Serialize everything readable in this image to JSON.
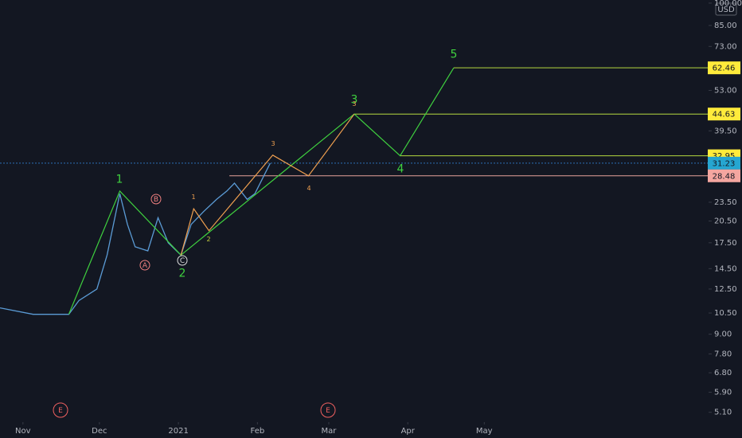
{
  "chart_data": {
    "type": "line",
    "log_scale": true,
    "currency": "USD",
    "ylim": [
      4.75,
      102.3
    ],
    "yticks": [
      {
        "value": 100,
        "label": "100.00"
      },
      {
        "value": 85,
        "label": "85.00"
      },
      {
        "value": 73,
        "label": "73.00"
      },
      {
        "value": 53,
        "label": "53.00"
      },
      {
        "value": 39.5,
        "label": "39.50"
      },
      {
        "value": 23.5,
        "label": "23.50"
      },
      {
        "value": 20.5,
        "label": "20.50"
      },
      {
        "value": 17.5,
        "label": "17.50"
      },
      {
        "value": 14.5,
        "label": "14.50"
      },
      {
        "value": 12.5,
        "label": "12.50"
      },
      {
        "value": 10.5,
        "label": "10.50"
      },
      {
        "value": 9,
        "label": "9.00"
      },
      {
        "value": 7.8,
        "label": "7.80"
      },
      {
        "value": 6.8,
        "label": "6.80"
      },
      {
        "value": 5.9,
        "label": "5.90"
      },
      {
        "value": 5.1,
        "label": "5.10"
      }
    ],
    "xlim": [
      -9,
      269
    ],
    "xticks": [
      {
        "value": 0,
        "label": "Nov"
      },
      {
        "value": 30,
        "label": "Dec"
      },
      {
        "value": 61,
        "label": "2021"
      },
      {
        "value": 92,
        "label": "Feb"
      },
      {
        "value": 120,
        "label": "Mar"
      },
      {
        "value": 151,
        "label": "Apr"
      },
      {
        "value": 181,
        "label": "May"
      }
    ],
    "price": {
      "color": "#5b9bd5",
      "x": [
        -9,
        4,
        18,
        22,
        29,
        33,
        38,
        41,
        44,
        49,
        53,
        57,
        62,
        66,
        71,
        76,
        80,
        83,
        88,
        91,
        97
      ],
      "values": [
        10.9,
        10.4,
        10.4,
        11.5,
        12.5,
        16,
        25,
        20,
        17,
        16.5,
        21,
        17.5,
        16,
        20,
        22,
        24,
        25.5,
        27,
        24,
        25,
        31.23
      ]
    },
    "waves": [
      {
        "color": "#3fd13f",
        "x": [
          18,
          38,
          62,
          130,
          148,
          169
        ],
        "values": [
          10.4,
          25.5,
          16,
          44.63,
          32.95,
          62.46
        ]
      },
      {
        "color": "#f0a050",
        "x": [
          62,
          67,
          73,
          98,
          112,
          130
        ],
        "values": [
          16,
          22.4,
          19.1,
          33.1,
          28.48,
          44.63
        ]
      }
    ],
    "levels": [
      {
        "value": 62.46,
        "from": 169,
        "line_color": "#b5d93f",
        "tag_color": "#ffeb3b"
      },
      {
        "value": 44.63,
        "from": 130,
        "line_color": "#b5d93f",
        "tag_color": "#ffeb3b"
      },
      {
        "value": 32.95,
        "from": 148,
        "line_color": "#b5d93f",
        "tag_color": "#ffeb3b"
      },
      {
        "value": 31.23,
        "from": -9,
        "line_color": "#2d6fb5",
        "tag_color": "#26a6d1",
        "dotted": true
      },
      {
        "value": 28.48,
        "from": 81,
        "line_color": "#e8a39b",
        "tag_color": "#f4a6a0"
      }
    ],
    "annotations": [
      {
        "text": "1",
        "color": "#3fd13f"
      },
      {
        "text": "2",
        "color": "#3fd13f"
      },
      {
        "text": "3",
        "color": "#3fd13f"
      },
      {
        "text": "4",
        "color": "#3fd13f"
      },
      {
        "text": "5",
        "color": "#3fd13f"
      },
      {
        "text": "1",
        "color": "#f0a050"
      },
      {
        "text": "2",
        "color": "#c8d040"
      },
      {
        "text": "3",
        "color": "#f0a050"
      },
      {
        "text": "4",
        "color": "#f0a050"
      },
      {
        "text": "3",
        "color": "#f0a050"
      },
      {
        "text": "A",
        "color": "#f08080",
        "circled": true
      },
      {
        "text": "B",
        "color": "#f08080",
        "circled": true
      },
      {
        "text": "C",
        "color": "#dddddd",
        "circled": true
      },
      {
        "text": "E",
        "color": "#f06060",
        "circled": true
      },
      {
        "text": "E",
        "color": "#f06060",
        "circled": true
      }
    ]
  }
}
